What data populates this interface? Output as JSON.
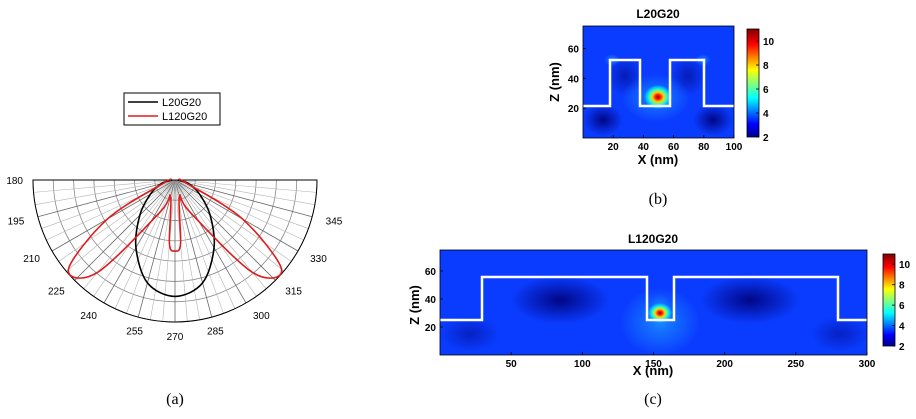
{
  "captions": {
    "a": "(a)",
    "b": "(b)",
    "c": "(c)"
  },
  "chart_data": [
    {
      "id": "a",
      "type": "line",
      "subtype": "polar",
      "title": "",
      "legend": {
        "placement": "top-center",
        "entries": [
          "L20G20",
          "L120G20"
        ]
      },
      "colors": {
        "L20G20": "#000000",
        "L120G20": "#e01b1b"
      },
      "angle_ticks": [
        "180",
        "195",
        "210",
        "225",
        "240",
        "255",
        "270",
        "285",
        "300",
        "315",
        "330",
        "345"
      ],
      "series": [
        {
          "name": "L20G20",
          "points": [
            [
              180,
              0.02
            ],
            [
              195,
              0.1
            ],
            [
              210,
              0.2
            ],
            [
              225,
              0.35
            ],
            [
              240,
              0.55
            ],
            [
              255,
              0.75
            ],
            [
              270,
              0.82
            ],
            [
              285,
              0.75
            ],
            [
              300,
              0.55
            ],
            [
              315,
              0.35
            ],
            [
              330,
              0.2
            ],
            [
              345,
              0.1
            ],
            [
              360,
              0.02
            ]
          ]
        },
        {
          "name": "L120G20",
          "points": [
            [
              180,
              0.03
            ],
            [
              195,
              0.08
            ],
            [
              210,
              0.55
            ],
            [
              220,
              0.98
            ],
            [
              230,
              0.85
            ],
            [
              245,
              0.25
            ],
            [
              255,
              0.12
            ],
            [
              265,
              0.45
            ],
            [
              270,
              0.5
            ],
            [
              275,
              0.45
            ],
            [
              285,
              0.12
            ],
            [
              295,
              0.25
            ],
            [
              310,
              0.85
            ],
            [
              320,
              0.98
            ],
            [
              330,
              0.55
            ],
            [
              345,
              0.08
            ],
            [
              360,
              0.03
            ]
          ]
        }
      ]
    },
    {
      "id": "b",
      "type": "heatmap",
      "title": "L20G20",
      "xlabel": "X (nm)",
      "ylabel": "Z (nm)",
      "xlim": [
        0,
        100
      ],
      "ylim": [
        0,
        75
      ],
      "xticks": [
        "20",
        "40",
        "60",
        "80",
        "100"
      ],
      "yticks": [
        "20",
        "40",
        "60"
      ],
      "colorbar": {
        "range": [
          2,
          11
        ],
        "ticks": [
          "2",
          "4",
          "6",
          "8",
          "10"
        ]
      },
      "hotspot": {
        "x": 50,
        "z": 27,
        "value": 11
      }
    },
    {
      "id": "c",
      "type": "heatmap",
      "title": "L120G20",
      "xlabel": "X (nm)",
      "ylabel": "Z (nm)",
      "xlim": [
        0,
        300
      ],
      "ylim": [
        0,
        75
      ],
      "xticks": [
        "50",
        "100",
        "150",
        "200",
        "250",
        "300"
      ],
      "yticks": [
        "20",
        "40",
        "60"
      ],
      "colorbar": {
        "range": [
          2,
          11
        ],
        "ticks": [
          "2",
          "4",
          "6",
          "8",
          "10"
        ]
      },
      "hotspot": {
        "x": 150,
        "z": 26,
        "value": 11
      }
    }
  ]
}
